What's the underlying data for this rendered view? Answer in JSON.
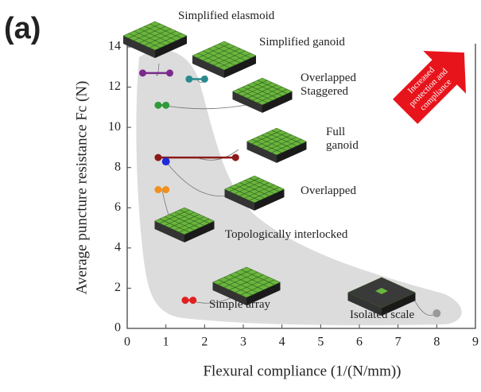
{
  "chart_data": {
    "type": "scatter",
    "panel_label": "(a)",
    "xlabel": "Flexural compliance (1/(N/mm))",
    "ylabel": "Average puncture resistance Fc (N)",
    "arrow_text": [
      "Increased",
      "protection and",
      "compliance"
    ],
    "xlim": [
      0,
      9
    ],
    "ylim": [
      0,
      14
    ],
    "xticks": [
      0,
      1,
      2,
      3,
      4,
      5,
      6,
      7,
      8,
      9
    ],
    "yticks": [
      0,
      2,
      4,
      6,
      8,
      10,
      12,
      14
    ],
    "series": [
      {
        "name": "Simplified elasmoid",
        "color": "#7b2a8c",
        "x": [
          0.75
        ],
        "values": [
          12.7
        ],
        "xerr": [
          0.35
        ]
      },
      {
        "name": "Simplified ganoid",
        "color": "#2a8a8c",
        "x": [
          1.8
        ],
        "values": [
          12.4
        ],
        "xerr": [
          0.2
        ]
      },
      {
        "name": "Overlapped Staggered",
        "color": "#2e9a3a",
        "x": [
          0.9
        ],
        "values": [
          11.1
        ],
        "xerr": [
          0.1
        ]
      },
      {
        "name": "Full ganoid",
        "color": "#8c1a1a",
        "x": [
          1.8
        ],
        "values": [
          8.5
        ],
        "xerr": [
          1.0
        ]
      },
      {
        "name": "Overlapped",
        "color": "#1f2ad8",
        "x": [
          1.0
        ],
        "values": [
          8.3
        ],
        "xerr": [
          0
        ]
      },
      {
        "name": "Topologically interlocked",
        "color": "#f0901e",
        "x": [
          0.9
        ],
        "values": [
          6.9
        ],
        "xerr": [
          0.1
        ]
      },
      {
        "name": "Simple array",
        "color": "#e02020",
        "x": [
          1.6
        ],
        "values": [
          1.4
        ],
        "xerr": [
          0.1
        ]
      },
      {
        "name": "Isolated scale",
        "color": "#999999",
        "x": [
          8.0
        ],
        "values": [
          0.75
        ],
        "xerr": [
          0
        ]
      }
    ]
  }
}
